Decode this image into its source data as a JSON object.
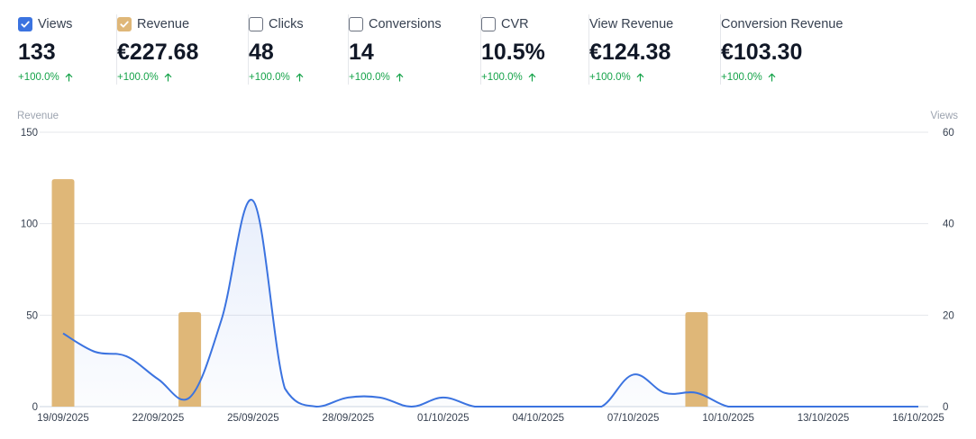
{
  "colors": {
    "views": "#3b73e0",
    "revenue": "#dfb778",
    "positive": "#16a34a"
  },
  "metrics": [
    {
      "label": "Views",
      "value": "133",
      "change": "+100.0%",
      "checked": true,
      "checkbox_color": "#3b73e0",
      "has_checkbox": true
    },
    {
      "label": "Revenue",
      "value": "€227.68",
      "change": "+100.0%",
      "checked": true,
      "checkbox_color": "#dfb778",
      "has_checkbox": true
    },
    {
      "label": "Clicks",
      "value": "48",
      "change": "+100.0%",
      "checked": false,
      "has_checkbox": true
    },
    {
      "label": "Conversions",
      "value": "14",
      "change": "+100.0%",
      "checked": false,
      "has_checkbox": true
    },
    {
      "label": "CVR",
      "value": "10.5%",
      "change": "+100.0%",
      "checked": false,
      "has_checkbox": true
    },
    {
      "label": "View Revenue",
      "value": "€124.38",
      "change": "+100.0%",
      "has_checkbox": false
    },
    {
      "label": "Conversion Revenue",
      "value": "€103.30",
      "change": "+100.0%",
      "has_checkbox": false
    }
  ],
  "chart_data": {
    "type": "bar+line",
    "left_axis_label": "Revenue",
    "right_axis_label": "Views",
    "left_ylim": [
      0,
      150
    ],
    "left_ticks": [
      0,
      50,
      100,
      150
    ],
    "right_ylim": [
      0,
      60
    ],
    "right_ticks": [
      0,
      20,
      40,
      60
    ],
    "grid": true,
    "x_tick_labels": [
      "19/09/2025",
      "22/09/2025",
      "25/09/2025",
      "28/09/2025",
      "01/10/2025",
      "04/10/2025",
      "07/10/2025",
      "10/10/2025",
      "13/10/2025",
      "16/10/2025"
    ],
    "dates": [
      "19/09/2025",
      "20/09/2025",
      "21/09/2025",
      "22/09/2025",
      "23/09/2025",
      "24/09/2025",
      "25/09/2025",
      "26/09/2025",
      "27/09/2025",
      "28/09/2025",
      "29/09/2025",
      "30/09/2025",
      "01/10/2025",
      "02/10/2025",
      "03/10/2025",
      "04/10/2025",
      "05/10/2025",
      "06/10/2025",
      "07/10/2025",
      "08/10/2025",
      "09/10/2025",
      "10/10/2025",
      "11/10/2025",
      "12/10/2025",
      "13/10/2025",
      "14/10/2025",
      "15/10/2025",
      "16/10/2025"
    ],
    "series": [
      {
        "name": "Revenue",
        "kind": "bar",
        "axis": "left",
        "color": "#dfb778",
        "values": [
          124.38,
          0,
          0,
          0,
          51.65,
          0,
          0,
          0,
          0,
          0,
          0,
          0,
          0,
          0,
          0,
          0,
          0,
          0,
          0,
          0,
          51.65,
          0,
          0,
          0,
          0,
          0,
          0,
          0
        ]
      },
      {
        "name": "Views",
        "kind": "line",
        "axis": "right",
        "color": "#3b73e0",
        "values": [
          16,
          12,
          11,
          6,
          2,
          19,
          45,
          4,
          0,
          2,
          2,
          0,
          2,
          0,
          0,
          0,
          0,
          0,
          7,
          3,
          3,
          0,
          0,
          0,
          0,
          0,
          0,
          0
        ]
      }
    ]
  }
}
